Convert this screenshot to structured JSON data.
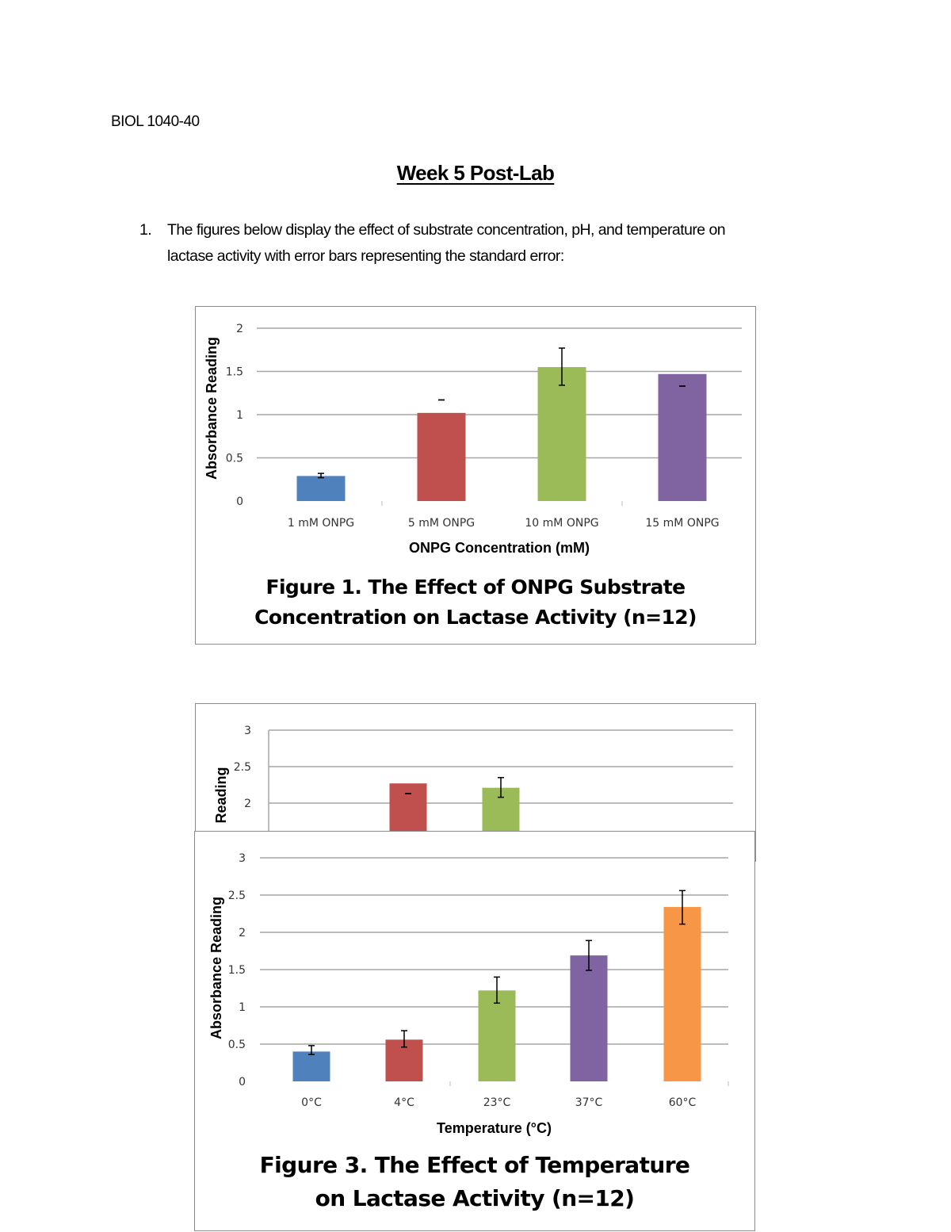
{
  "header": {
    "course": "BIOL 1040-40",
    "title": "Week 5 Post-Lab"
  },
  "question": {
    "number": "1.",
    "line1": "The figures below display the effect of substrate concentration, pH, and temperature on",
    "line2": "lactase activity with error bars representing the standard error:"
  },
  "chart_data": [
    {
      "type": "bar",
      "title": "Figure 1. The Effect of ONPG Substrate Concentration on Lactase Activity (n=12)",
      "title_lines": [
        "Figure 1. The Effect of ONPG Substrate",
        "Concentration on Lactase Activity (n=12)"
      ],
      "xlabel": "ONPG Concentration (mM)",
      "ylabel": "Absorbance Reading",
      "ylim": [
        0,
        2
      ],
      "yticks": [
        "0",
        "0.5",
        "1",
        "1.5",
        "2"
      ],
      "grid": true,
      "categories": [
        "1 mM ONPG",
        "5 mM ONPG",
        "10 mM ONPG",
        "15 mM ONPG"
      ],
      "values": [
        0.29,
        1.02,
        1.55,
        1.47
      ],
      "error_low": [
        0.27,
        1.17,
        1.34,
        1.33
      ],
      "error_high": [
        0.32,
        1.17,
        1.77,
        1.33
      ],
      "colors": [
        "#4f81bd",
        "#c0504d",
        "#9bbb59",
        "#8064a2"
      ]
    },
    {
      "type": "bar",
      "partial": true,
      "ylabel": "Reading",
      "ylim": [
        2,
        3
      ],
      "yticks": [
        "2",
        "2.5",
        "3"
      ],
      "grid": true,
      "values": [
        null,
        2.27,
        2.21,
        null,
        null
      ],
      "error_low": [
        null,
        2.13,
        2.08,
        null,
        null
      ],
      "error_high": [
        null,
        2.13,
        2.35,
        null,
        null
      ],
      "colors": [
        "#4f81bd",
        "#c0504d",
        "#9bbb59",
        "#8064a2",
        "#f79646"
      ]
    },
    {
      "type": "bar",
      "title": "Figure 3. The Effect of Temperature on Lactase Activity (n=12)",
      "title_lines": [
        "Figure 3. The Effect of Temperature",
        "on Lactase Activity (n=12)"
      ],
      "xlabel": "Temperature (°C)",
      "ylabel": "Absorbance Reading",
      "ylim": [
        0,
        3
      ],
      "yticks": [
        "0",
        "0.5",
        "1",
        "1.5",
        "2",
        "2.5",
        "3"
      ],
      "grid": true,
      "categories": [
        "0°C",
        "4°C",
        "23°C",
        "37°C",
        "60°C"
      ],
      "values": [
        0.4,
        0.56,
        1.22,
        1.69,
        2.34
      ],
      "error_low": [
        0.36,
        0.46,
        1.05,
        1.49,
        2.11
      ],
      "error_high": [
        0.48,
        0.68,
        1.4,
        1.89,
        2.56
      ],
      "colors": [
        "#4f81bd",
        "#c0504d",
        "#9bbb59",
        "#8064a2",
        "#f79646"
      ]
    }
  ]
}
